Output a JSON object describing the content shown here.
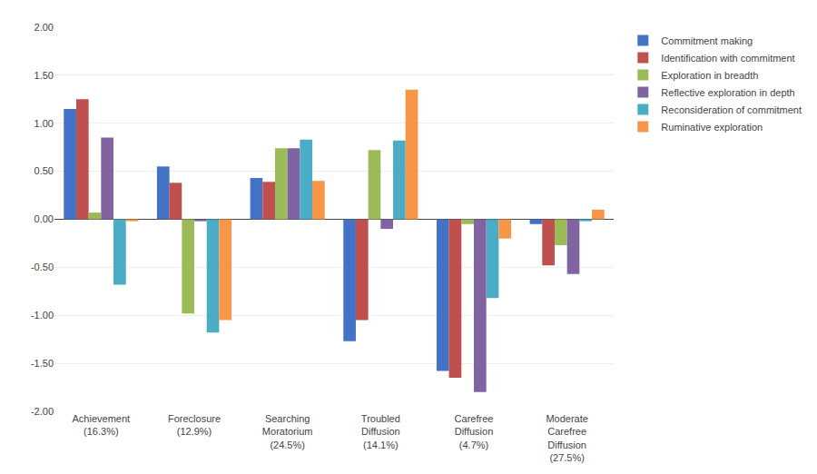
{
  "chart_data": {
    "type": "bar",
    "categories": [
      "Achievement\n(16.3%)",
      "Foreclosure\n(12.9%)",
      "Searching\nMoratorium\n(24.5%)",
      "Troubled\nDiffusion\n(14.1%)",
      "Carefree\nDiffusion\n(4.7%)",
      "Moderate\nCarefree\nDiffusion\n(27.5%)"
    ],
    "series": [
      {
        "name": "Commitment making",
        "color": "#4472C4",
        "values": [
          1.15,
          0.55,
          0.43,
          -1.27,
          -1.58,
          -0.05
        ]
      },
      {
        "name": "Identification with commitment",
        "color": "#C0504D",
        "values": [
          1.25,
          0.38,
          0.39,
          -1.05,
          -1.65,
          -0.48
        ]
      },
      {
        "name": "Exploration in breadth",
        "color": "#9BBB59",
        "values": [
          0.07,
          -0.98,
          0.74,
          0.72,
          -0.05,
          -0.27
        ]
      },
      {
        "name": "Reflective exploration in depth",
        "color": "#8064A2",
        "values": [
          0.85,
          -0.02,
          0.74,
          -0.1,
          -1.8,
          -0.57
        ]
      },
      {
        "name": "Reconsideration of commitment",
        "color": "#4BACC6",
        "values": [
          -0.68,
          -1.18,
          0.83,
          0.82,
          -0.82,
          -0.02
        ]
      },
      {
        "name": "Ruminative exploration",
        "color": "#F79646",
        "values": [
          -0.02,
          -1.05,
          0.4,
          1.35,
          -0.2,
          0.1
        ]
      }
    ],
    "ylim": [
      -2.0,
      2.0
    ],
    "yticks": [
      {
        "value": -2.0,
        "label": "-2.00"
      },
      {
        "value": -1.5,
        "label": "-1.50"
      },
      {
        "value": -1.0,
        "label": "-1.00"
      },
      {
        "value": -0.5,
        "label": "-0.50"
      },
      {
        "value": 0.0,
        "label": "0.00"
      },
      {
        "value": 0.5,
        "label": "0.50"
      },
      {
        "value": 1.0,
        "label": "1.00"
      },
      {
        "value": 1.5,
        "label": "1.50"
      },
      {
        "value": 2.0,
        "label": "2.00"
      }
    ],
    "grid": true,
    "legend": "right"
  }
}
